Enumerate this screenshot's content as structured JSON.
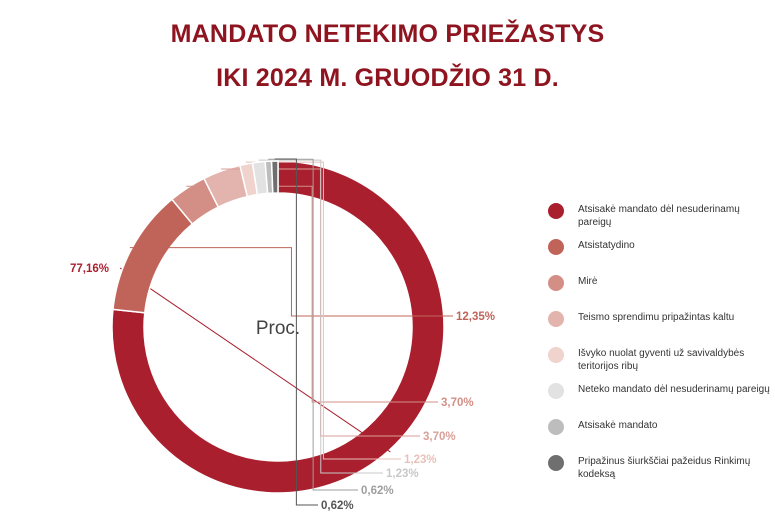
{
  "chart_data": {
    "type": "pie",
    "variant": "donut",
    "title_lines": [
      "MANDATO NETEKIMO PRIEŽASTYS",
      "IKI 2024 M. GRUODŽIO 31 D."
    ],
    "center_label": "Proc.",
    "legend_position": "right",
    "slices": [
      {
        "label": "Atsisakė mandato dėl nesuderinamų pareigų",
        "value": 77.16,
        "value_label": "77,16%",
        "color": "#aa1f2e",
        "label_color": "#aa1f2e"
      },
      {
        "label": "Atsistatydino",
        "value": 12.35,
        "value_label": "12,35%",
        "color": "#c0645a",
        "label_color": "#c0645a"
      },
      {
        "label": "Mirė",
        "value": 3.7,
        "value_label": "3,70%",
        "color": "#d38f85",
        "label_color": "#d38f85"
      },
      {
        "label": "Teismo sprendimu pripažintas kaltu",
        "value": 3.7,
        "value_label": "3,70%",
        "color": "#e3b3ad",
        "label_color": "#d99f98"
      },
      {
        "label": "Išvyko nuolat gyventi už savivaldybės teritorijos ribų",
        "value": 1.23,
        "value_label": "1,23%",
        "color": "#f0d3cd",
        "label_color": "#e8c1ba"
      },
      {
        "label": "Neteko mandato dėl nesuderinamų pareigų",
        "value": 1.23,
        "value_label": "1,23%",
        "color": "#e2e2e2",
        "label_color": "#c8c8c8"
      },
      {
        "label": "Atsisakė mandato",
        "value": 0.62,
        "value_label": "0,62%",
        "color": "#bdbdbd",
        "label_color": "#9e9e9e"
      },
      {
        "label": "Pripažinus šiurkščiai pažeidus Rinkimų kodeksą",
        "value": 0.62,
        "value_label": "0,62%",
        "color": "#6f6f6f",
        "label_color": "#555555"
      }
    ]
  }
}
